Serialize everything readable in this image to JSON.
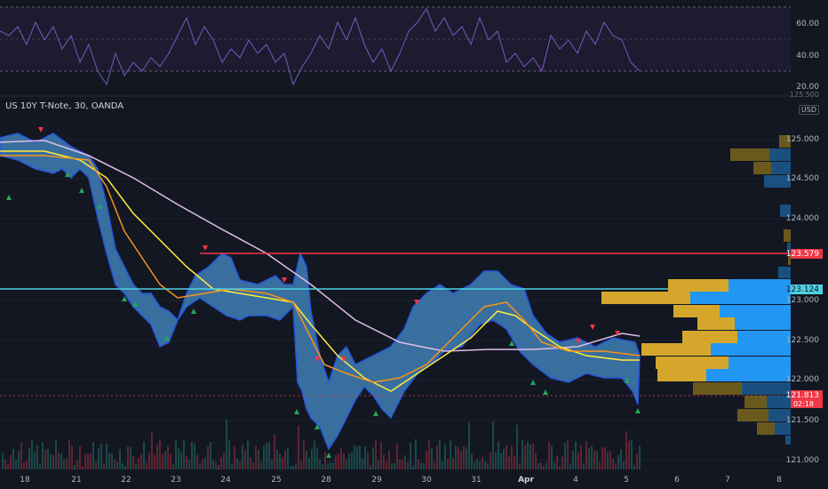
{
  "symbol": "US 10Y T-Note, 30, OANDA",
  "currency": "USD",
  "top_axis_label": "125.500",
  "rsi_axis": [
    "60.00",
    "40.00",
    "20.00"
  ],
  "price_axis": [
    "125.000",
    "124.500",
    "124.000",
    "123.000",
    "122.500",
    "122.000",
    "121.500",
    "121.000"
  ],
  "x_axis": [
    "18",
    "21",
    "22",
    "23",
    "24",
    "25",
    "28",
    "29",
    "30",
    "31",
    "Apr",
    "4",
    "5",
    "6",
    "7",
    "8"
  ],
  "price_tags": {
    "red_line": "123.579",
    "cyan_line": "123.124",
    "last_price": "121.813",
    "countdown": "02:18"
  },
  "colors": {
    "background": "#131722",
    "band_fill": "#3f7fb5",
    "band_edge": "#2962ff",
    "ma_orange": "#f7931a",
    "ma_yellow": "#ffeb3b",
    "ma_pink": "#e1bee7",
    "rsi_line": "#7e57c2",
    "resistance": "#f23645",
    "support": "#4dd0e1",
    "volume_up": "#b38f1a",
    "volume_down": "#2196f3"
  },
  "chart_data": {
    "type": "line",
    "x_labels": [
      "18",
      "21",
      "22",
      "23",
      "24",
      "25",
      "28",
      "29",
      "30",
      "31",
      "Apr",
      "4",
      "5"
    ],
    "series": [
      {
        "values": [
          124.9,
          124.8,
          123.8,
          123.1,
          123.0,
          122.9,
          121.7,
          121.9,
          123.0,
          123.2,
          122.4,
          122.3,
          121.8
        ]
      }
    ],
    "ylim": [
      120.9,
      125.5
    ],
    "horizontal_lines": [
      123.579,
      123.124
    ],
    "last_price": 121.813
  }
}
